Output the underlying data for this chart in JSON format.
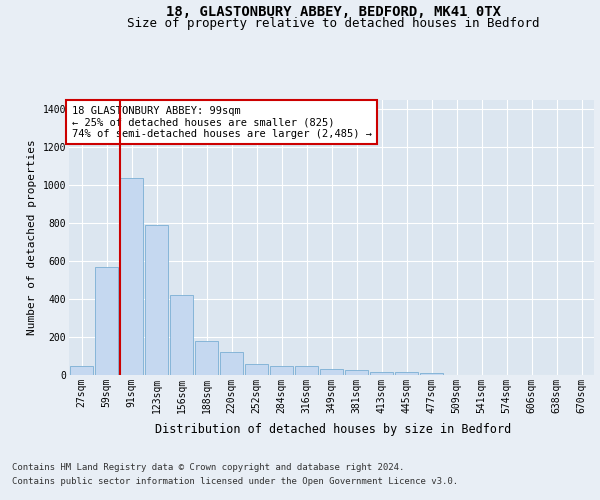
{
  "title1": "18, GLASTONBURY ABBEY, BEDFORD, MK41 0TX",
  "title2": "Size of property relative to detached houses in Bedford",
  "xlabel": "Distribution of detached houses by size in Bedford",
  "ylabel": "Number of detached properties",
  "categories": [
    "27sqm",
    "59sqm",
    "91sqm",
    "123sqm",
    "156sqm",
    "188sqm",
    "220sqm",
    "252sqm",
    "284sqm",
    "316sqm",
    "349sqm",
    "381sqm",
    "413sqm",
    "445sqm",
    "477sqm",
    "509sqm",
    "541sqm",
    "574sqm",
    "606sqm",
    "638sqm",
    "670sqm"
  ],
  "values": [
    45,
    570,
    1040,
    790,
    420,
    180,
    120,
    60,
    50,
    50,
    30,
    25,
    18,
    15,
    10,
    0,
    0,
    0,
    0,
    0,
    0
  ],
  "bar_color": "#c5d8f0",
  "bar_edge_color": "#7bafd4",
  "vline_color": "#cc0000",
  "vline_x": 2,
  "annotation_text": "18 GLASTONBURY ABBEY: 99sqm\n← 25% of detached houses are smaller (825)\n74% of semi-detached houses are larger (2,485) →",
  "annotation_box_color": "#cc0000",
  "ylim": [
    0,
    1450
  ],
  "yticks": [
    0,
    200,
    400,
    600,
    800,
    1000,
    1200,
    1400
  ],
  "bg_color": "#e8eef5",
  "plot_bg_color": "#dce6f0",
  "footer1": "Contains HM Land Registry data © Crown copyright and database right 2024.",
  "footer2": "Contains public sector information licensed under the Open Government Licence v3.0.",
  "title1_fontsize": 10,
  "title2_fontsize": 9,
  "tick_fontsize": 7,
  "xlabel_fontsize": 8.5,
  "ylabel_fontsize": 8,
  "footer_fontsize": 6.5,
  "ann_fontsize": 7.5
}
